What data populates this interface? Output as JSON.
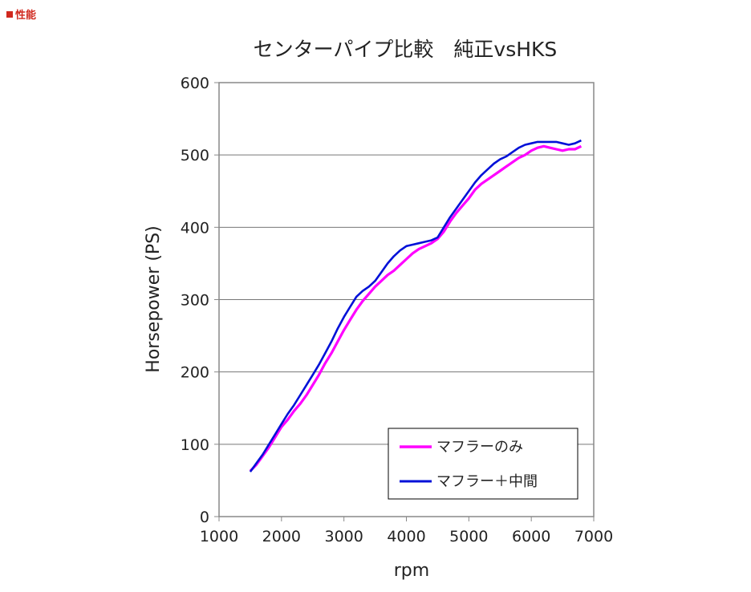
{
  "header": {
    "section_label": "性能"
  },
  "chart_data": {
    "type": "line",
    "title": "センターパイプ比較　純正vsHKS",
    "xlabel": "rpm",
    "ylabel": "Horsepower (PS)",
    "xlim": [
      1000,
      7000
    ],
    "ylim": [
      0,
      600
    ],
    "xticks": [
      1000,
      2000,
      3000,
      4000,
      5000,
      6000,
      7000
    ],
    "yticks": [
      0,
      100,
      200,
      300,
      400,
      500,
      600
    ],
    "grid": "horizontal",
    "legend_position": "bottom-right",
    "series": [
      {
        "name": "マフラーのみ",
        "color": "#ff00ff",
        "x": [
          1500,
          1600,
          1700,
          1800,
          1900,
          2000,
          2100,
          2200,
          2300,
          2400,
          2500,
          2600,
          2700,
          2800,
          2900,
          3000,
          3100,
          3200,
          3300,
          3400,
          3500,
          3600,
          3700,
          3800,
          3900,
          4000,
          4100,
          4200,
          4300,
          4400,
          4500,
          4600,
          4700,
          4800,
          4900,
          5000,
          5100,
          5200,
          5300,
          5400,
          5500,
          5600,
          5700,
          5800,
          5900,
          6000,
          6100,
          6200,
          6300,
          6400,
          6500,
          6600,
          6700,
          6800
        ],
        "y": [
          63,
          72,
          84,
          96,
          110,
          124,
          134,
          146,
          156,
          168,
          182,
          196,
          212,
          226,
          242,
          258,
          272,
          286,
          298,
          308,
          318,
          326,
          334,
          340,
          348,
          356,
          364,
          370,
          374,
          378,
          384,
          394,
          408,
          420,
          430,
          440,
          452,
          460,
          466,
          472,
          478,
          484,
          490,
          496,
          500,
          506,
          510,
          512,
          510,
          508,
          506,
          508,
          508,
          512
        ]
      },
      {
        "name": "マフラー＋中間",
        "color": "#0010d8",
        "x": [
          1500,
          1600,
          1700,
          1800,
          1900,
          2000,
          2100,
          2200,
          2300,
          2400,
          2500,
          2600,
          2700,
          2800,
          2900,
          3000,
          3100,
          3200,
          3300,
          3400,
          3500,
          3600,
          3700,
          3800,
          3900,
          4000,
          4100,
          4200,
          4300,
          4400,
          4500,
          4600,
          4700,
          4800,
          4900,
          5000,
          5100,
          5200,
          5300,
          5400,
          5500,
          5600,
          5700,
          5800,
          5900,
          6000,
          6100,
          6200,
          6300,
          6400,
          6500,
          6600,
          6700,
          6800
        ],
        "y": [
          62,
          74,
          86,
          100,
          114,
          128,
          142,
          154,
          168,
          182,
          196,
          210,
          226,
          242,
          260,
          276,
          290,
          304,
          312,
          318,
          326,
          338,
          350,
          360,
          368,
          374,
          376,
          378,
          380,
          382,
          386,
          400,
          414,
          426,
          438,
          450,
          462,
          472,
          480,
          488,
          494,
          498,
          504,
          510,
          514,
          516,
          518,
          518,
          518,
          518,
          516,
          514,
          516,
          520
        ]
      }
    ]
  }
}
